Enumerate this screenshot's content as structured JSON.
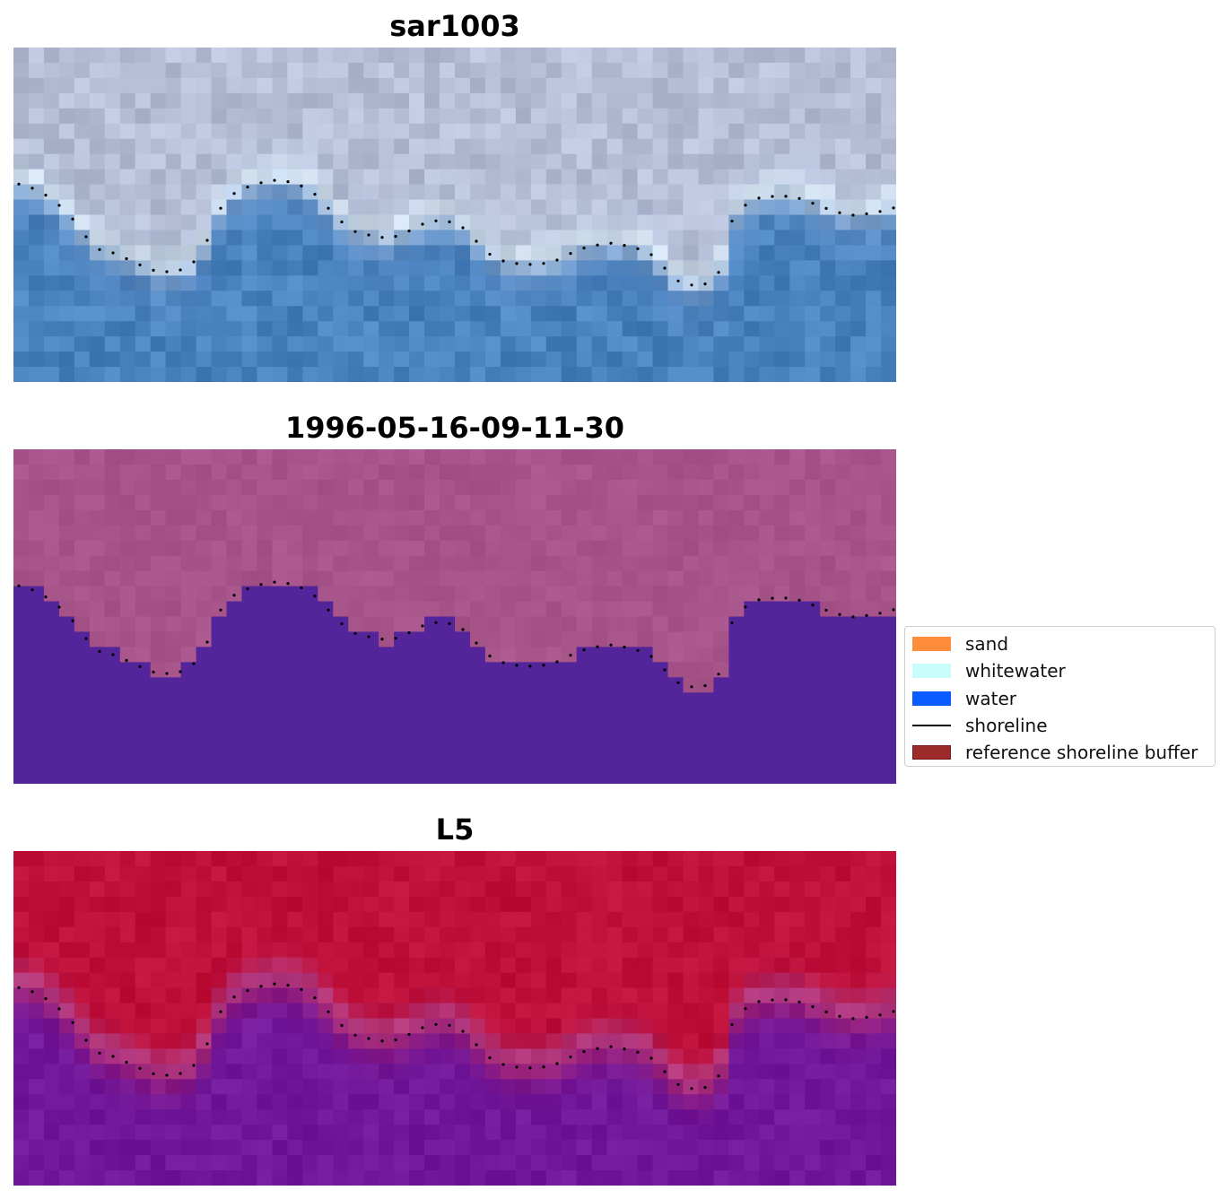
{
  "panels": [
    {
      "title": "sar1003",
      "kind": "rgb"
    },
    {
      "title": "1996-05-16-09-11-30",
      "kind": "classification"
    },
    {
      "title": "L5",
      "kind": "mndwi"
    }
  ],
  "legend": {
    "items": [
      {
        "label": "sand",
        "type": "patch",
        "color": "#ff8c3a"
      },
      {
        "label": "whitewater",
        "type": "patch",
        "color": "#c8fdfa"
      },
      {
        "label": "water",
        "type": "patch",
        "color": "#0a5cff"
      },
      {
        "label": "shoreline",
        "type": "line",
        "color": "#000000"
      },
      {
        "label": "reference shoreline buffer",
        "type": "patch",
        "color": "#9c2a2a",
        "edge": "#7a1a1a"
      }
    ]
  },
  "colors": {
    "land_rgb": "#b6bed6",
    "water_rgb": "#4a82c0",
    "land_class": "#a65489",
    "water_class": "#54249b",
    "land_mndwi": "#c01038",
    "water_mndwi": "#70189c",
    "shoreline_dots": "#000000"
  }
}
